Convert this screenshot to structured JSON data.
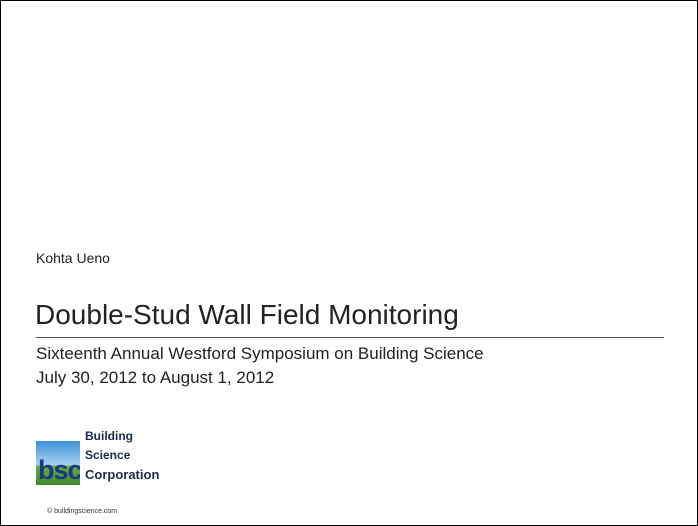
{
  "slide": {
    "author": "Kohta Ueno",
    "title": "Double-Stud Wall Field Monitoring",
    "subtitle": [
      "Sixteenth Annual Westford Symposium on Building Science",
      "July 30, 2012 to August 1, 2012"
    ],
    "logo": {
      "mark": "bsc",
      "name": [
        "Building",
        "Science",
        "Corporation"
      ],
      "site": "© buildingscience.com"
    }
  }
}
